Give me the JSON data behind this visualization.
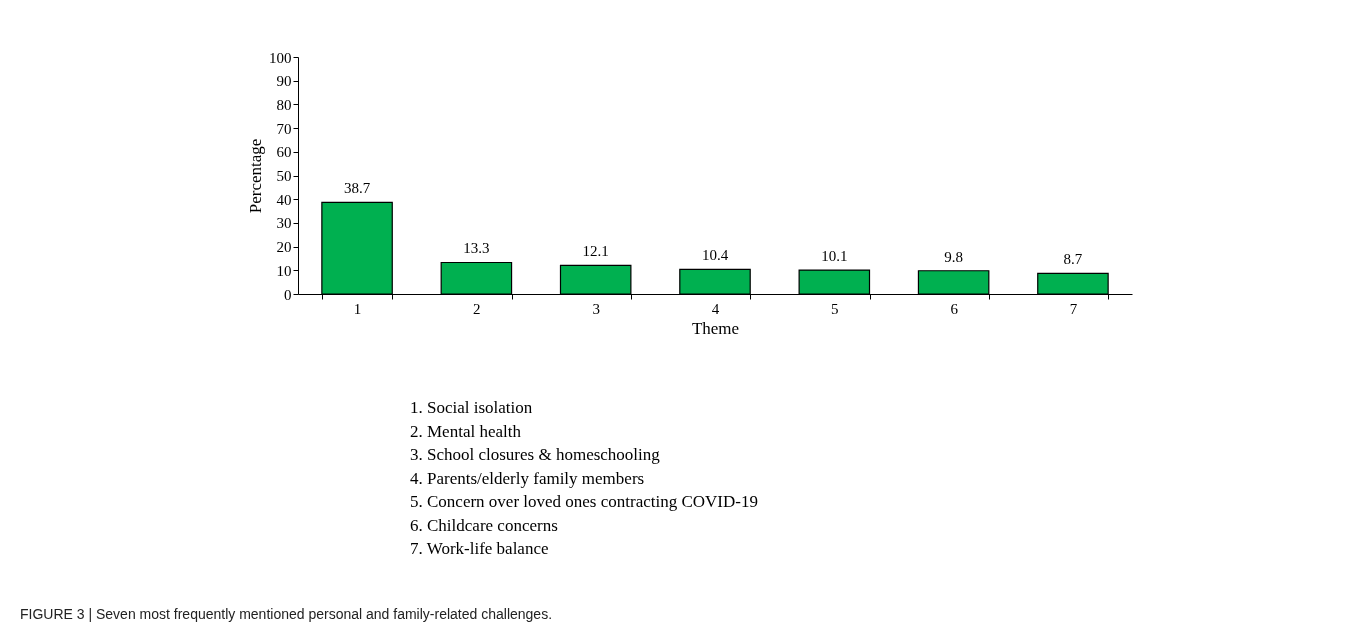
{
  "chart_data": {
    "type": "bar",
    "categories": [
      "1",
      "2",
      "3",
      "4",
      "5",
      "6",
      "7"
    ],
    "values": [
      38.7,
      13.3,
      12.1,
      10.4,
      10.1,
      9.8,
      8.7
    ],
    "color": "#00b050",
    "xlabel": "Theme",
    "ylabel": "Percentage",
    "ylim": [
      0,
      100
    ],
    "yticks": [
      0,
      10,
      20,
      30,
      40,
      50,
      60,
      70,
      80,
      90,
      100
    ],
    "grid": false,
    "data_labels": true,
    "annotations": [
      "1. Social isolation",
      "2. Mental health",
      "3. School closures & homeschooling",
      "4. Parents/elderly family members",
      "5. Concern over loved ones contracting COVID-19",
      "6. Childcare concerns",
      "7. Work-life balance",
      "FIGURE 3 | Seven most frequently mentioned personal and family-related challenges."
    ]
  }
}
